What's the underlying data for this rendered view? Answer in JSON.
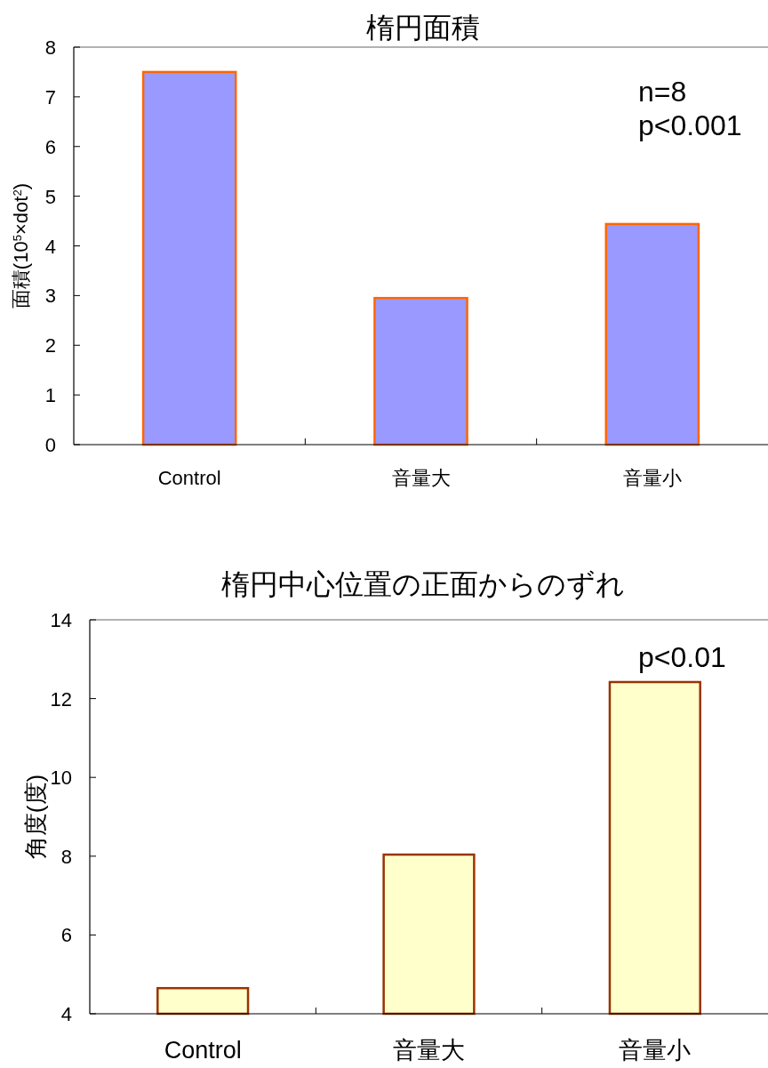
{
  "chart_data": [
    {
      "type": "bar",
      "title": "楕円面積",
      "ylabel": "面積(10$^{5}$×dot$^{2}$)",
      "categories": [
        "Control",
        "音量大",
        "音量小"
      ],
      "values": [
        7.5,
        2.95,
        4.44
      ],
      "color": "#9999ff",
      "ylim": [
        0,
        8
      ],
      "yticks": [
        0,
        1,
        2,
        3,
        4,
        5,
        6,
        7,
        8
      ],
      "annotations": [
        "n=8",
        "p<0.001"
      ]
    },
    {
      "type": "bar",
      "title": "楕円中心位置の正面からのずれ",
      "ylabel": "角度(度)",
      "categories": [
        "Control",
        "音量大",
        "音量小"
      ],
      "values": [
        4.65,
        8.04,
        12.42
      ],
      "color": "#ffffcc",
      "ylim": [
        4,
        14
      ],
      "yticks": [
        4,
        6,
        8,
        10,
        12,
        14
      ],
      "annotations": [
        "p<0.01"
      ]
    }
  ]
}
